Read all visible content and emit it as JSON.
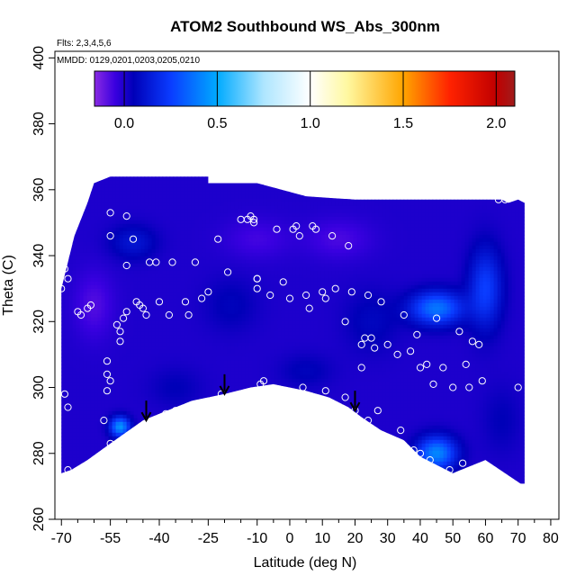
{
  "chart_data": {
    "type": "heatmap",
    "title": "ATOM2 Southbound WS_Abs_300nm",
    "annotations": [
      "Flts: 2,3,4,5,6",
      "MMDD: 0129,0201,0203,0205,0210"
    ],
    "xlabel": "Latitude (deg N)",
    "ylabel": "Theta (C)",
    "xlim": [
      -70,
      85
    ],
    "ylim": [
      260,
      402
    ],
    "x_ticks": [
      -70,
      -55,
      -40,
      -25,
      -10,
      0,
      10,
      20,
      30,
      40,
      50,
      60,
      70,
      80
    ],
    "y_ticks": [
      260,
      280,
      300,
      320,
      340,
      360,
      380,
      400
    ],
    "colorbar": {
      "range": [
        -0.16,
        2.1
      ],
      "ticks": [
        0.0,
        0.5,
        1.0,
        1.5,
        2.0
      ],
      "tick_labels": [
        "0.0",
        "0.5",
        "1.0",
        "1.5",
        "2.0"
      ],
      "stops": [
        {
          "v": -0.16,
          "c": "#8a2be2"
        },
        {
          "v": -0.05,
          "c": "#3a00e0"
        },
        {
          "v": 0.05,
          "c": "#0000b8"
        },
        {
          "v": 0.25,
          "c": "#0a3cff"
        },
        {
          "v": 0.5,
          "c": "#00aaff"
        },
        {
          "v": 0.75,
          "c": "#aee6ff"
        },
        {
          "v": 1.0,
          "c": "#ffffff"
        },
        {
          "v": 1.2,
          "c": "#fff8a0"
        },
        {
          "v": 1.5,
          "c": "#ffa500"
        },
        {
          "v": 1.75,
          "c": "#ff2200"
        },
        {
          "v": 2.0,
          "c": "#c00000"
        },
        {
          "v": 2.1,
          "c": "#a01c1c"
        }
      ]
    },
    "field": {
      "upper_boundary": [
        [
          -70,
          330
        ],
        [
          -66,
          346
        ],
        [
          -62,
          356
        ],
        [
          -60,
          362
        ],
        [
          -55,
          364
        ],
        [
          -25,
          364
        ],
        [
          -25,
          362
        ],
        [
          -10,
          362
        ],
        [
          5,
          358
        ],
        [
          20,
          357
        ],
        [
          40,
          357
        ],
        [
          60,
          357
        ],
        [
          65,
          357
        ],
        [
          67,
          356
        ],
        [
          70,
          357
        ],
        [
          72,
          356
        ],
        [
          72,
          310
        ]
      ],
      "lower_boundary": [
        [
          72,
          270
        ],
        [
          60,
          278
        ],
        [
          50,
          274
        ],
        [
          40,
          279
        ],
        [
          35,
          284
        ],
        [
          28,
          287
        ],
        [
          22,
          291
        ],
        [
          18,
          294
        ],
        [
          12,
          297
        ],
        [
          5,
          299
        ],
        [
          -5,
          301
        ],
        [
          -12,
          300
        ],
        [
          -20,
          298
        ],
        [
          -30,
          296
        ],
        [
          -40,
          292
        ],
        [
          -45,
          290
        ],
        [
          -55,
          283
        ],
        [
          -62,
          278
        ],
        [
          -67,
          275
        ],
        [
          -70,
          274
        ],
        [
          -70,
          300
        ]
      ],
      "background_value": 0.0,
      "features": [
        {
          "x": -48,
          "y": 344,
          "v": 0.12,
          "sx": 7,
          "sy": 5
        },
        {
          "x": -18,
          "y": 325,
          "v": 0.06,
          "sx": 8,
          "sy": 8
        },
        {
          "x": 5,
          "y": 305,
          "v": 0.06,
          "sx": 8,
          "sy": 5
        },
        {
          "x": 25,
          "y": 320,
          "v": 0.07,
          "sx": 8,
          "sy": 9
        },
        {
          "x": 45,
          "y": 324,
          "v": 0.38,
          "sx": 8,
          "sy": 5
        },
        {
          "x": 60,
          "y": 330,
          "v": 0.25,
          "sx": 5,
          "sy": 12
        },
        {
          "x": 45,
          "y": 280,
          "v": 0.42,
          "sx": 6,
          "sy": 5
        },
        {
          "x": -52,
          "y": 288,
          "v": 0.45,
          "sx": 3,
          "sy": 3
        },
        {
          "x": -35,
          "y": 300,
          "v": 0.05,
          "sx": 8,
          "sy": 6
        },
        {
          "x": -60,
          "y": 325,
          "v": -0.08,
          "sx": 6,
          "sy": 10
        },
        {
          "x": 15,
          "y": 345,
          "v": -0.07,
          "sx": 10,
          "sy": 6
        },
        {
          "x": -10,
          "y": 345,
          "v": -0.06,
          "sx": 10,
          "sy": 6
        },
        {
          "x": 35,
          "y": 345,
          "v": 0.0,
          "sx": 10,
          "sy": 8
        },
        {
          "x": 65,
          "y": 290,
          "v": 0.05,
          "sx": 6,
          "sy": 10
        }
      ]
    },
    "points": [
      [
        -70,
        330
      ],
      [
        -69,
        336
      ],
      [
        -68,
        333
      ],
      [
        -69,
        298
      ],
      [
        -68,
        294
      ],
      [
        -68,
        275
      ],
      [
        -65,
        323
      ],
      [
        -64,
        322
      ],
      [
        -62,
        324
      ],
      [
        -61,
        325
      ],
      [
        -57,
        290
      ],
      [
        -56,
        299
      ],
      [
        -56,
        304
      ],
      [
        -56,
        308
      ],
      [
        -55,
        302
      ],
      [
        -55,
        283
      ],
      [
        -54,
        281
      ],
      [
        -53,
        319
      ],
      [
        -52,
        314
      ],
      [
        -52,
        317
      ],
      [
        -51,
        321
      ],
      [
        -50,
        323
      ],
      [
        -55,
        346
      ],
      [
        -55,
        353
      ],
      [
        -50,
        352
      ],
      [
        -50,
        337
      ],
      [
        -48,
        345
      ],
      [
        -47,
        326
      ],
      [
        -46,
        325
      ],
      [
        -45,
        324
      ],
      [
        -44,
        322
      ],
      [
        -43,
        338
      ],
      [
        -41,
        338
      ],
      [
        -40,
        326
      ],
      [
        -38,
        292
      ],
      [
        -37,
        322
      ],
      [
        -36,
        338
      ],
      [
        -35,
        293
      ],
      [
        -32,
        326
      ],
      [
        -31,
        322
      ],
      [
        -29,
        338
      ],
      [
        -27,
        327
      ],
      [
        -25,
        329
      ],
      [
        -22,
        345
      ],
      [
        -21,
        298
      ],
      [
        -19,
        335
      ],
      [
        -15,
        351
      ],
      [
        -13,
        351
      ],
      [
        -12,
        352
      ],
      [
        -11,
        351
      ],
      [
        -11,
        350
      ],
      [
        -10,
        333
      ],
      [
        -10,
        333
      ],
      [
        -10,
        330
      ],
      [
        -9,
        301
      ],
      [
        -8,
        302
      ],
      [
        -6,
        328
      ],
      [
        -4,
        348
      ],
      [
        -2,
        332
      ],
      [
        0,
        327
      ],
      [
        1,
        348
      ],
      [
        2,
        349
      ],
      [
        3,
        346
      ],
      [
        4,
        300
      ],
      [
        5,
        328
      ],
      [
        6,
        324
      ],
      [
        7,
        349
      ],
      [
        8,
        348
      ],
      [
        10,
        329
      ],
      [
        11,
        299
      ],
      [
        11,
        327
      ],
      [
        13,
        346
      ],
      [
        14,
        330
      ],
      [
        17,
        320
      ],
      [
        17,
        297
      ],
      [
        18,
        343
      ],
      [
        19,
        329
      ],
      [
        20,
        293
      ],
      [
        22,
        313
      ],
      [
        22,
        306
      ],
      [
        23,
        315
      ],
      [
        24,
        290
      ],
      [
        24,
        328
      ],
      [
        25,
        315
      ],
      [
        26,
        312
      ],
      [
        27,
        293
      ],
      [
        28,
        326
      ],
      [
        30,
        313
      ],
      [
        33,
        310
      ],
      [
        34,
        287
      ],
      [
        35,
        322
      ],
      [
        37,
        311
      ],
      [
        38,
        281
      ],
      [
        39,
        316
      ],
      [
        40,
        306
      ],
      [
        40,
        280
      ],
      [
        42,
        307
      ],
      [
        43,
        278
      ],
      [
        44,
        301
      ],
      [
        45,
        321
      ],
      [
        47,
        306
      ],
      [
        49,
        275
      ],
      [
        50,
        300
      ],
      [
        52,
        317
      ],
      [
        53,
        277
      ],
      [
        54,
        307
      ],
      [
        55,
        300
      ],
      [
        56,
        314
      ],
      [
        58,
        313
      ],
      [
        59,
        302
      ],
      [
        64,
        357
      ],
      [
        66,
        357
      ],
      [
        70,
        300
      ]
    ],
    "arrows": [
      [
        -44,
        290
      ],
      [
        -20,
        298
      ],
      [
        20,
        293
      ]
    ]
  }
}
